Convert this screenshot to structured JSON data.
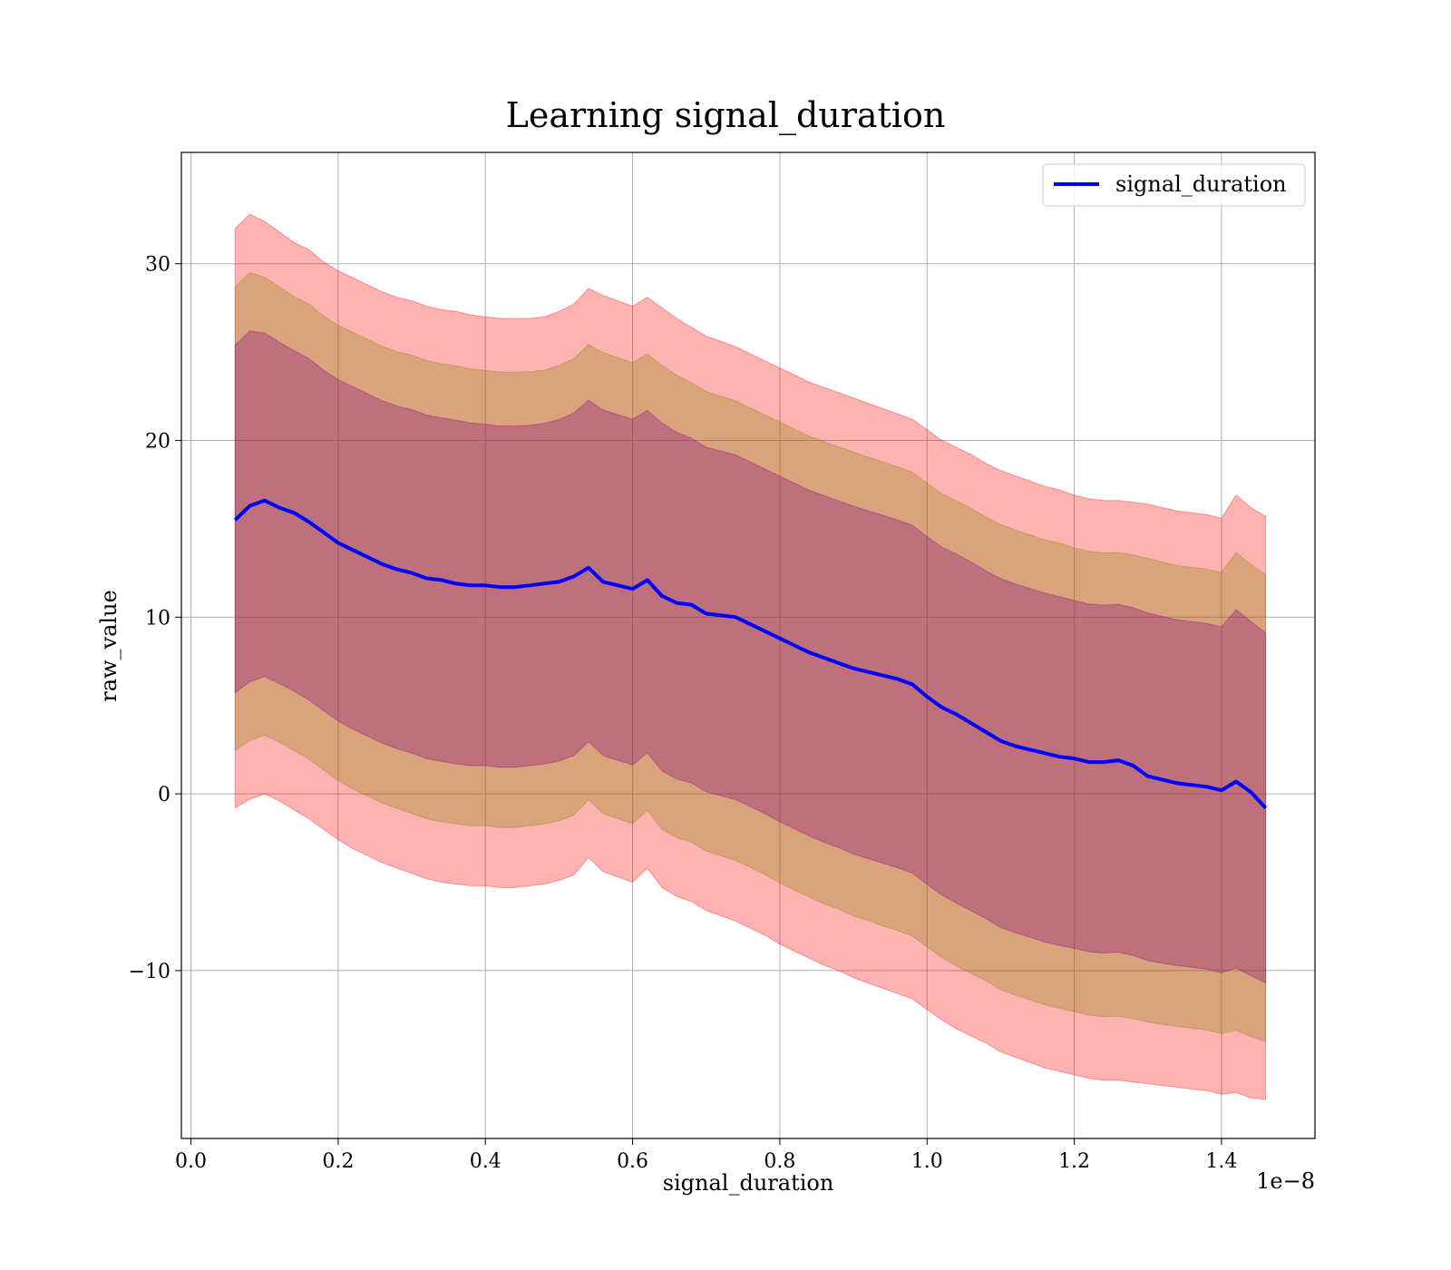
{
  "chart_data": {
    "type": "area",
    "title": "Learning signal_duration",
    "xlabel": "signal_duration",
    "ylabel": "raw_value",
    "x_offset_text": "1e−8",
    "xlim": [
      -0.013,
      1.527
    ],
    "ylim": [
      -19.5,
      36.3
    ],
    "grid": true,
    "legend_position": "top-right",
    "x_ticks": [
      0.0,
      0.2,
      0.4,
      0.6,
      0.8,
      1.0,
      1.2,
      1.4
    ],
    "x_tick_labels": [
      "0.0",
      "0.2",
      "0.4",
      "0.6",
      "0.8",
      "1.0",
      "1.2",
      "1.4"
    ],
    "y_ticks": [
      -10,
      0,
      10,
      20,
      30
    ],
    "y_tick_labels": [
      "−10",
      "0",
      "10",
      "20",
      "30"
    ],
    "x": [
      0.06,
      0.08,
      0.1,
      0.12,
      0.14,
      0.16,
      0.18,
      0.2,
      0.22,
      0.24,
      0.26,
      0.28,
      0.3,
      0.32,
      0.34,
      0.36,
      0.38,
      0.4,
      0.42,
      0.44,
      0.46,
      0.48,
      0.5,
      0.52,
      0.54,
      0.56,
      0.58,
      0.6,
      0.62,
      0.64,
      0.66,
      0.68,
      0.7,
      0.72,
      0.74,
      0.76,
      0.78,
      0.8,
      0.82,
      0.84,
      0.86,
      0.88,
      0.9,
      0.92,
      0.94,
      0.96,
      0.98,
      1.0,
      1.02,
      1.04,
      1.06,
      1.08,
      1.1,
      1.12,
      1.14,
      1.16,
      1.18,
      1.2,
      1.22,
      1.24,
      1.26,
      1.28,
      1.3,
      1.32,
      1.34,
      1.36,
      1.38,
      1.4,
      1.42,
      1.44,
      1.46
    ],
    "series": [
      {
        "name": "signal_duration",
        "color": "#0000ff",
        "values": [
          15.5,
          16.3,
          16.6,
          16.2,
          15.9,
          15.4,
          14.8,
          14.2,
          13.8,
          13.4,
          13.0,
          12.7,
          12.5,
          12.2,
          12.1,
          11.9,
          11.8,
          11.8,
          11.7,
          11.7,
          11.8,
          11.9,
          12.0,
          12.3,
          12.8,
          12.0,
          11.8,
          11.6,
          12.1,
          11.2,
          10.8,
          10.7,
          10.2,
          10.1,
          10.0,
          9.6,
          9.2,
          8.8,
          8.4,
          8.0,
          7.7,
          7.4,
          7.1,
          6.9,
          6.7,
          6.5,
          6.2,
          5.5,
          4.9,
          4.5,
          4.0,
          3.5,
          3.0,
          2.7,
          2.5,
          2.3,
          2.1,
          2.0,
          1.8,
          1.8,
          1.9,
          1.6,
          1.0,
          0.8,
          0.6,
          0.5,
          0.4,
          0.2,
          0.7,
          0.1,
          -0.8
        ]
      }
    ],
    "bands": [
      {
        "color": "#ff0000",
        "opacity": 0.3,
        "upper": [
          32.0,
          32.8,
          32.4,
          31.8,
          31.2,
          30.8,
          30.1,
          29.6,
          29.2,
          28.8,
          28.4,
          28.1,
          27.9,
          27.6,
          27.4,
          27.3,
          27.1,
          27.0,
          26.9,
          26.9,
          26.9,
          27.0,
          27.3,
          27.7,
          28.6,
          28.2,
          27.9,
          27.6,
          28.1,
          27.5,
          26.9,
          26.4,
          25.9,
          25.6,
          25.3,
          24.9,
          24.5,
          24.1,
          23.7,
          23.3,
          23.0,
          22.7,
          22.4,
          22.1,
          21.8,
          21.5,
          21.2,
          20.6,
          20.0,
          19.6,
          19.2,
          18.7,
          18.3,
          18.0,
          17.7,
          17.4,
          17.2,
          16.9,
          16.7,
          16.6,
          16.6,
          16.5,
          16.4,
          16.2,
          16.0,
          15.9,
          15.8,
          15.6,
          16.9,
          16.2,
          15.7
        ]
      },
      {
        "color": "#ff0000",
        "opacity": 0.3,
        "lower": [
          -0.8,
          -0.3,
          0.0,
          -0.4,
          -0.9,
          -1.4,
          -2.0,
          -2.6,
          -3.1,
          -3.5,
          -3.9,
          -4.2,
          -4.5,
          -4.8,
          -5.0,
          -5.1,
          -5.2,
          -5.2,
          -5.3,
          -5.3,
          -5.2,
          -5.1,
          -4.9,
          -4.6,
          -3.6,
          -4.4,
          -4.7,
          -5.0,
          -4.2,
          -5.3,
          -5.8,
          -6.1,
          -6.6,
          -6.9,
          -7.2,
          -7.6,
          -8.0,
          -8.5,
          -8.9,
          -9.3,
          -9.7,
          -10.0,
          -10.4,
          -10.7,
          -11.0,
          -11.3,
          -11.6,
          -12.2,
          -12.8,
          -13.3,
          -13.7,
          -14.1,
          -14.6,
          -14.9,
          -15.2,
          -15.5,
          -15.7,
          -15.9,
          -16.1,
          -16.2,
          -16.2,
          -16.3,
          -16.4,
          -16.5,
          -16.6,
          -16.7,
          -16.8,
          -17.0,
          -16.9,
          -17.2,
          -17.3
        ]
      }
    ],
    "band_layers": [
      {
        "color": "#ff0000",
        "opacity": 0.3,
        "scale": 1.0
      },
      {
        "color": "#808000",
        "opacity": 0.3,
        "scale": 0.8
      },
      {
        "color": "#800080",
        "opacity": 0.3,
        "scale": 0.6
      }
    ]
  }
}
